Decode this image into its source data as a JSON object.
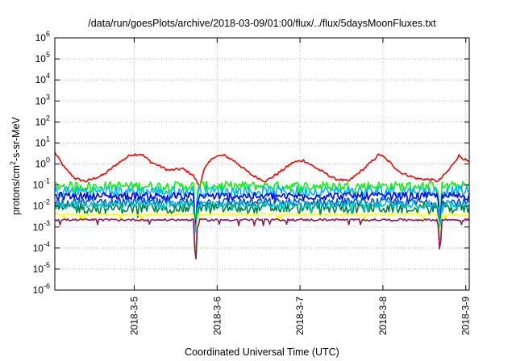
{
  "chart_data": {
    "type": "line",
    "title": "/data/run/goesPlots/archive/2018-03-09/01:00/flux/../flux/5daysMoonFluxes.txt",
    "xlabel": "Coordinated Universal Time (UTC)",
    "ylabel": "protons/cm²-s-sr-MeV",
    "ylabel_parts": {
      "pre": "protons/cm",
      "sup": "2",
      "post": "-s-sr-MeV"
    },
    "y_scale": "log",
    "ylim": [
      1e-06,
      1000000.0
    ],
    "y_ticks": [
      {
        "base": "10",
        "exp": "6"
      },
      {
        "base": "10",
        "exp": "5"
      },
      {
        "base": "10",
        "exp": "4"
      },
      {
        "base": "10",
        "exp": "3"
      },
      {
        "base": "10",
        "exp": "2"
      },
      {
        "base": "10",
        "exp": "1"
      },
      {
        "base": "10",
        "exp": "0"
      },
      {
        "base": "10",
        "exp": "-1"
      },
      {
        "base": "10",
        "exp": "-2"
      },
      {
        "base": "10",
        "exp": "-3"
      },
      {
        "base": "10",
        "exp": "-4"
      },
      {
        "base": "10",
        "exp": "-5"
      },
      {
        "base": "10",
        "exp": "-6"
      }
    ],
    "x_start": "2018-03-04T01:00",
    "x_end": "2018-03-09T01:00",
    "x_ticks": [
      "2018-3-5",
      "2018-3-6",
      "2018-3-7",
      "2018-3-8",
      "2018-3-9"
    ],
    "grid": true,
    "series_note": "Series values are not labeled; approximate median levels (protons/cm2-s-sr-MeV) read from the log axis.",
    "series": [
      {
        "color": "#ff0000",
        "base_level": 0.6,
        "shape_points": [
          [
            "2018-03-04T01:00",
            3.5
          ],
          [
            "2018-03-04T04:00",
            0.6
          ],
          [
            "2018-03-04T07:00",
            0.2
          ],
          [
            "2018-03-04T10:00",
            0.15
          ],
          [
            "2018-03-04T15:00",
            0.3
          ],
          [
            "2018-03-04T19:00",
            1.0
          ],
          [
            "2018-03-04T23:00",
            2.8
          ],
          [
            "2018-03-05T02:00",
            3.0
          ],
          [
            "2018-03-05T05:00",
            1.2
          ],
          [
            "2018-03-05T10:00",
            0.5
          ],
          [
            "2018-03-05T14:00",
            0.6
          ],
          [
            "2018-03-05T17:00",
            0.3
          ],
          [
            "2018-03-05T19:00",
            0.08
          ],
          [
            "2018-03-05T20:00",
            0.5
          ],
          [
            "2018-03-05T23:00",
            2.2
          ],
          [
            "2018-03-06T02:00",
            2.6
          ],
          [
            "2018-03-06T05:00",
            1.4
          ],
          [
            "2018-03-06T10:00",
            0.3
          ],
          [
            "2018-03-06T14:00",
            0.15
          ],
          [
            "2018-03-06T18:00",
            0.4
          ],
          [
            "2018-03-06T22:00",
            1.2
          ],
          [
            "2018-03-07T01:00",
            1.5
          ],
          [
            "2018-03-07T05:00",
            0.6
          ],
          [
            "2018-03-07T10:00",
            0.2
          ],
          [
            "2018-03-07T14:00",
            0.15
          ],
          [
            "2018-03-07T19:00",
            0.7
          ],
          [
            "2018-03-07T23:00",
            3.0
          ],
          [
            "2018-03-08T02:00",
            1.2
          ],
          [
            "2018-03-08T05:00",
            0.4
          ],
          [
            "2018-03-08T10:00",
            0.2
          ],
          [
            "2018-03-08T14:00",
            0.18
          ],
          [
            "2018-03-08T16:00",
            0.15
          ],
          [
            "2018-03-08T19:00",
            0.5
          ],
          [
            "2018-03-08T22:00",
            2.5
          ],
          [
            "2018-03-09T01:00",
            1.2
          ]
        ]
      },
      {
        "color": "#00ff00",
        "base_level": 0.09
      },
      {
        "color": "#00b4ff",
        "base_level": 0.05
      },
      {
        "color": "#0000ff",
        "base_level": 0.03
      },
      {
        "color": "#0050dc",
        "base_level": 0.015
      },
      {
        "color": "#008040",
        "base_level": 0.008
      },
      {
        "color": "#00c8c8",
        "base_level": 0.012
      },
      {
        "color": "#ffff00",
        "base_level": 0.004
      },
      {
        "color": "#8b1a5a",
        "base_level": 0.0022
      }
    ],
    "dips": [
      {
        "x": "2018-03-05T17:45",
        "min": 1e-05
      },
      {
        "x": "2018-03-08T16:30",
        "min": 4e-05
      }
    ]
  }
}
